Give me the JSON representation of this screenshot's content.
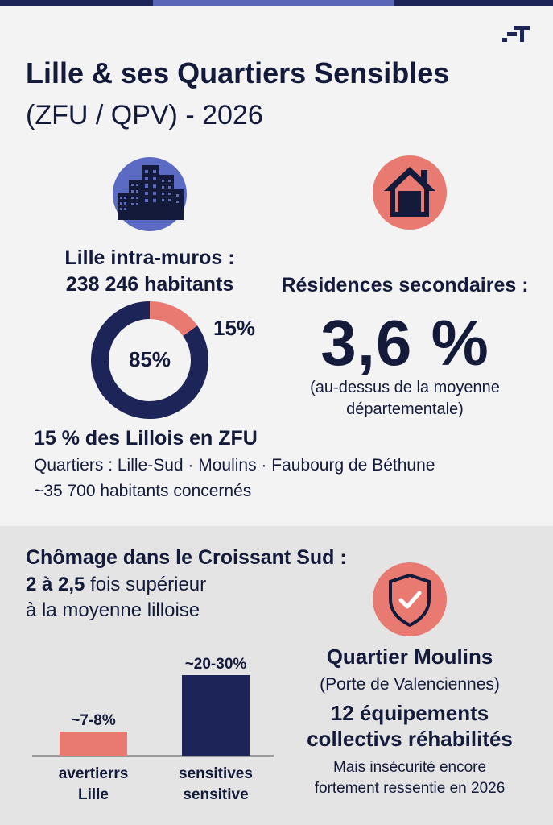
{
  "header": {
    "title": "Lille & ses Quartiers Sensibles",
    "subtitle": "(ZFU / QPV) - 2026"
  },
  "colors": {
    "navy": "#1d2457",
    "accent_red": "#e87a72",
    "accent_blue": "#5b6bc4"
  },
  "population": {
    "icon": "buildings-icon",
    "label": "Lille intra-muros :",
    "value": "238 246 habitants"
  },
  "secondary_residences": {
    "icon": "house-icon",
    "label": "Résidences secondaires :",
    "value": "3,6 %",
    "note_line1": "(au-dessus de la moyenne",
    "note_line2": "départementale)"
  },
  "zfu": {
    "headline": "15 % des Lillois en ZFU",
    "districts": "Quartiers : Lille-Sud · Moulins · Faubourg de Béthune",
    "residents": "~35 700 habitants concernés"
  },
  "unemployment": {
    "heading": "Chômage dans le Croissant Sud :",
    "ratio_bold": "2 à 2,5",
    "ratio_rest": " fois supérieur",
    "ratio_line2": "à la moyenne lilloise"
  },
  "moulins": {
    "icon": "shield-check-icon",
    "title": "Quartier Moulins",
    "subtitle": "(Porte de Valenciennes)",
    "facilities_line1": "12 équipements",
    "facilities_line2": "collectivs réhabilités",
    "note_line1": "Mais insécurité encore",
    "note_line2": "fortement ressentie en 2026"
  },
  "chart_data": [
    {
      "type": "pie",
      "labels": [
        "85%",
        "15%"
      ],
      "values": [
        85,
        15
      ],
      "colors": [
        "#1d2457",
        "#e87a72"
      ]
    },
    {
      "type": "bar",
      "categories": [
        [
          "avertierrs",
          "Lille"
        ],
        [
          "sensitives",
          "sensitive"
        ]
      ],
      "values": [
        7.5,
        25
      ],
      "data_labels": [
        "~7-8%",
        "~20-30%"
      ],
      "colors": [
        "#e87a72",
        "#1d2457"
      ],
      "ylim": [
        0,
        30
      ]
    }
  ]
}
